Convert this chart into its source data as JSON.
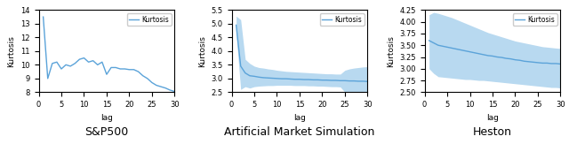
{
  "sp500": {
    "label": "S&P500",
    "ylabel": "Kurtosis",
    "xlabel": "lag",
    "xlim": [
      0,
      30
    ],
    "ylim": [
      8,
      14
    ],
    "yticks": [
      8,
      9,
      10,
      11,
      12,
      13,
      14
    ],
    "xticks": [
      0,
      5,
      10,
      15,
      20,
      25,
      30
    ],
    "line_color": "#5ba3d9",
    "line_x": [
      1,
      2,
      3,
      4,
      5,
      6,
      7,
      8,
      9,
      10,
      11,
      12,
      13,
      14,
      15,
      16,
      17,
      18,
      19,
      20,
      21,
      22,
      23,
      24,
      25,
      26,
      27,
      28,
      29,
      30
    ],
    "line_y": [
      13.5,
      9.0,
      10.1,
      10.2,
      9.7,
      10.0,
      9.9,
      10.1,
      10.4,
      10.5,
      10.2,
      10.3,
      10.0,
      10.2,
      9.3,
      9.8,
      9.8,
      9.7,
      9.7,
      9.65,
      9.65,
      9.5,
      9.2,
      9.0,
      8.7,
      8.5,
      8.4,
      8.3,
      8.15,
      8.05
    ]
  },
  "ams": {
    "label": "Artificial Market Simulation",
    "ylabel": "Kurtosis",
    "xlabel": "lag",
    "xlim": [
      0,
      30
    ],
    "ylim": [
      2.5,
      5.5
    ],
    "yticks": [
      2.5,
      3.0,
      3.5,
      4.0,
      4.5,
      5.0,
      5.5
    ],
    "xticks": [
      0,
      5,
      10,
      15,
      20,
      25,
      30
    ],
    "line_color": "#5ba3d9",
    "fill_color": "#b8d9f0",
    "line_x": [
      1,
      2,
      3,
      4,
      5,
      6,
      7,
      8,
      9,
      10,
      11,
      12,
      13,
      14,
      15,
      16,
      17,
      18,
      19,
      20,
      21,
      22,
      23,
      24,
      25,
      26,
      27,
      28,
      29,
      30
    ],
    "line_y": [
      4.95,
      3.45,
      3.2,
      3.1,
      3.08,
      3.05,
      3.03,
      3.02,
      3.01,
      3.0,
      2.99,
      2.99,
      2.98,
      2.97,
      2.97,
      2.96,
      2.96,
      2.95,
      2.95,
      2.94,
      2.94,
      2.93,
      2.93,
      2.92,
      2.92,
      2.91,
      2.91,
      2.9,
      2.9,
      2.89
    ],
    "upper_y": [
      5.28,
      5.15,
      3.7,
      3.55,
      3.45,
      3.4,
      3.38,
      3.35,
      3.33,
      3.3,
      3.28,
      3.26,
      3.25,
      3.24,
      3.23,
      3.22,
      3.21,
      3.2,
      3.19,
      3.18,
      3.17,
      3.17,
      3.16,
      3.16,
      3.3,
      3.35,
      3.38,
      3.4,
      3.42,
      3.43
    ],
    "lower_y": [
      4.62,
      2.6,
      2.7,
      2.65,
      2.7,
      2.72,
      2.73,
      2.74,
      2.74,
      2.75,
      2.75,
      2.75,
      2.75,
      2.74,
      2.74,
      2.74,
      2.73,
      2.73,
      2.72,
      2.72,
      2.71,
      2.7,
      2.7,
      2.69,
      2.5,
      2.47,
      2.45,
      2.44,
      2.43,
      2.42
    ]
  },
  "heston": {
    "label": "Heston",
    "ylabel": "Kurtosis",
    "xlabel": "lag",
    "xlim": [
      0,
      30
    ],
    "ylim": [
      2.5,
      4.25
    ],
    "yticks": [
      2.5,
      2.75,
      3.0,
      3.25,
      3.5,
      3.75,
      4.0,
      4.25
    ],
    "xticks": [
      0,
      5,
      10,
      15,
      20,
      25,
      30
    ],
    "line_color": "#5ba3d9",
    "fill_color": "#b8d9f0",
    "line_x": [
      1,
      2,
      3,
      4,
      5,
      6,
      7,
      8,
      9,
      10,
      11,
      12,
      13,
      14,
      15,
      16,
      17,
      18,
      19,
      20,
      21,
      22,
      23,
      24,
      25,
      26,
      27,
      28,
      29,
      30
    ],
    "line_y": [
      3.6,
      3.55,
      3.5,
      3.48,
      3.46,
      3.44,
      3.42,
      3.4,
      3.38,
      3.36,
      3.34,
      3.32,
      3.3,
      3.28,
      3.27,
      3.25,
      3.24,
      3.22,
      3.21,
      3.19,
      3.18,
      3.16,
      3.15,
      3.14,
      3.13,
      3.12,
      3.12,
      3.11,
      3.11,
      3.1
    ],
    "upper_y": [
      4.15,
      4.2,
      4.18,
      4.15,
      4.12,
      4.09,
      4.05,
      4.01,
      3.97,
      3.93,
      3.89,
      3.85,
      3.81,
      3.77,
      3.74,
      3.71,
      3.68,
      3.65,
      3.62,
      3.59,
      3.57,
      3.55,
      3.53,
      3.51,
      3.49,
      3.47,
      3.46,
      3.45,
      3.44,
      3.43
    ],
    "lower_y": [
      3.0,
      2.9,
      2.83,
      2.82,
      2.81,
      2.8,
      2.79,
      2.78,
      2.77,
      2.77,
      2.76,
      2.75,
      2.75,
      2.74,
      2.73,
      2.72,
      2.71,
      2.7,
      2.69,
      2.68,
      2.67,
      2.66,
      2.65,
      2.64,
      2.63,
      2.62,
      2.61,
      2.6,
      2.6,
      2.59
    ]
  },
  "legend_label": "Kurtosis",
  "legend_fontsize": 5.5,
  "tick_fontsize": 6,
  "axis_label_fontsize": 6.5,
  "caption_fontsize": 9,
  "line_width": 1.0
}
